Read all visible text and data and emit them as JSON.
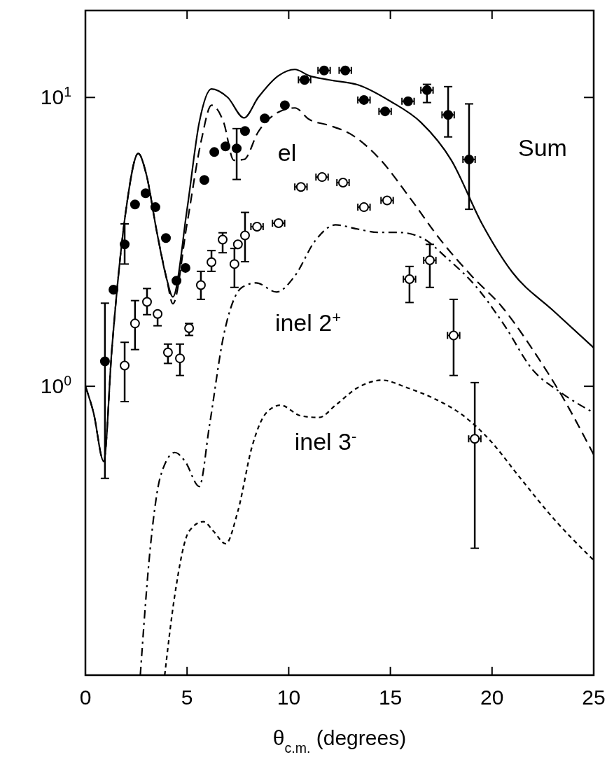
{
  "chart_data": {
    "type": "line",
    "xlabel": "θ$_{c.m.}$ (degrees)",
    "log": "y",
    "grid": false,
    "xlim": [
      0,
      25
    ],
    "xticks": [
      0,
      5,
      10,
      15,
      20,
      25
    ],
    "ylim": [
      0.1,
      20
    ],
    "yticks": [
      {
        "value": 1,
        "label": "10$^{0}$"
      },
      {
        "value": 10,
        "label": "10$^{1}$"
      }
    ],
    "annotations": [
      "Sum",
      "el",
      "inel 2$^{+}$",
      "inel 3$^{-}$"
    ],
    "series": [
      {
        "color": "#000000",
        "line_style": "solid",
        "x": [
          0,
          0.4,
          0.9,
          1.3,
          2,
          2.6,
          3,
          3.5,
          4,
          4.3,
          5,
          5.6,
          6.2,
          7,
          7.8,
          8.5,
          9.5,
          10.3,
          11,
          12,
          13.5,
          15,
          16.5,
          18,
          19.5,
          21,
          23,
          25
        ],
        "values": [
          1.0,
          0.81,
          0.55,
          1.34,
          4.1,
          6.4,
          5.4,
          3.46,
          2.35,
          2.04,
          4.1,
          8.2,
          10.7,
          10,
          8.5,
          10,
          11.9,
          12.5,
          11.9,
          11.5,
          11,
          9.7,
          8.2,
          6.06,
          3.66,
          2.48,
          1.83,
          1.36
        ]
      },
      {
        "color": "#000000",
        "line_style": "dashed",
        "x": [
          0,
          0.4,
          0.9,
          1.3,
          2,
          2.6,
          3,
          3.5,
          4,
          4.3,
          5,
          5.7,
          6.2,
          6.8,
          7.3,
          7.8,
          8.5,
          9.5,
          10.3,
          11,
          12,
          13,
          14.5,
          16,
          17.5,
          19,
          20.5,
          22,
          23.5,
          25
        ],
        "values": [
          1.0,
          0.81,
          0.55,
          1.34,
          4.1,
          6.4,
          5.4,
          3.46,
          2.35,
          1.93,
          3.66,
          7.1,
          9.4,
          8.2,
          6.06,
          6.1,
          7.6,
          8.9,
          9.2,
          8.4,
          8.0,
          7.5,
          6.1,
          4.45,
          3.19,
          2.41,
          1.88,
          1.34,
          0.91,
          0.58
        ]
      },
      {
        "color": "#000000",
        "line_style": "dashdot",
        "x": [
          2.7,
          3.2,
          3.7,
          4.4,
          4.9,
          5.6,
          6.1,
          6.8,
          7.7,
          8.4,
          9.4,
          10.3,
          11.3,
          12.3,
          13.4,
          14.4,
          15.4,
          16.5,
          17.8,
          19.2,
          20.6,
          22,
          23.3,
          25
        ],
        "values": [
          0.1,
          0.28,
          0.49,
          0.59,
          0.55,
          0.45,
          0.73,
          1.5,
          2.2,
          2.28,
          2.12,
          2.41,
          3.19,
          3.62,
          3.5,
          3.41,
          3.41,
          3.28,
          2.77,
          2.22,
          1.63,
          1.14,
          0.96,
          0.81
        ]
      },
      {
        "color": "#000000",
        "line_style": "dotted",
        "x": [
          3.9,
          4.4,
          5.1,
          5.8,
          6.3,
          6.9,
          7.5,
          8.2,
          8.9,
          9.6,
          10.6,
          11.5,
          12.3,
          13.4,
          14.6,
          15.8,
          17.1,
          18.5,
          19.9,
          21.3,
          23,
          25
        ],
        "values": [
          0.1,
          0.19,
          0.315,
          0.34,
          0.315,
          0.285,
          0.37,
          0.62,
          0.81,
          0.86,
          0.79,
          0.78,
          0.86,
          0.99,
          1.05,
          0.99,
          0.91,
          0.8,
          0.65,
          0.49,
          0.35,
          0.25
        ]
      },
      {
        "type": "scatter",
        "color": "#000000",
        "marker": "circle",
        "x": [
          0.96,
          1.38,
          1.93,
          2.44,
          2.96,
          3.44,
          3.96,
          4.48,
          4.92,
          5.85,
          6.34,
          6.89,
          7.44,
          7.85,
          8.82,
          9.81,
          10.78,
          11.74,
          12.78,
          13.7,
          14.74,
          15.87,
          16.8,
          17.84,
          18.87
        ],
        "values": [
          1.22,
          2.16,
          3.1,
          4.26,
          4.66,
          4.17,
          3.26,
          2.32,
          2.57,
          5.18,
          6.47,
          6.77,
          6.66,
          7.65,
          8.46,
          9.4,
          11.5,
          12.4,
          12.4,
          9.8,
          8.95,
          9.7,
          10.6,
          8.7,
          6.1
        ],
        "errors": [
          [
            0.48,
            1.94
          ],
          null,
          [
            2.65,
            3.65
          ],
          null,
          null,
          null,
          null,
          null,
          null,
          null,
          null,
          null,
          [
            5.2,
            7.8
          ],
          null,
          null,
          null,
          null,
          null,
          null,
          null,
          null,
          null,
          [
            9.6,
            11.1
          ],
          [
            7.3,
            10.9
          ],
          [
            4.1,
            9.5
          ]
        ],
        "xerrors": [
          null,
          null,
          null,
          null,
          null,
          null,
          null,
          null,
          null,
          null,
          null,
          null,
          null,
          null,
          null,
          null,
          0.3,
          0.3,
          0.3,
          0.3,
          0.3,
          0.3,
          0.3,
          0.3,
          0.3
        ]
      },
      {
        "type": "scatter",
        "color": "#ffffff",
        "marker": "circle",
        "x": [
          1.93,
          2.44,
          3.03,
          3.55,
          4.06,
          4.65,
          5.1,
          5.68,
          6.2,
          6.75,
          7.33,
          7.5,
          7.85,
          8.44,
          9.5,
          10.6,
          11.64,
          12.67,
          13.7,
          14.84,
          15.94,
          16.94,
          18.11,
          19.15
        ],
        "values": [
          1.18,
          1.65,
          1.96,
          1.78,
          1.31,
          1.25,
          1.59,
          2.24,
          2.69,
          3.22,
          2.65,
          3.1,
          3.33,
          3.57,
          3.67,
          4.9,
          5.3,
          5.07,
          4.17,
          4.4,
          2.35,
          2.73,
          1.5,
          0.658
        ],
        "errors": [
          [
            0.885,
            1.42
          ],
          [
            1.34,
            1.98
          ],
          [
            1.77,
            2.18
          ],
          [
            1.62,
            1.8
          ],
          [
            1.2,
            1.4
          ],
          [
            1.09,
            1.4
          ],
          [
            1.5,
            1.65
          ],
          [
            2.0,
            2.5
          ],
          [
            2.5,
            2.95
          ],
          [
            2.9,
            3.4
          ],
          [
            2.2,
            3.0
          ],
          null,
          [
            2.7,
            4.0
          ],
          null,
          null,
          null,
          null,
          null,
          null,
          null,
          [
            1.95,
            2.6
          ],
          [
            2.2,
            3.1
          ],
          [
            1.09,
            2.0
          ],
          [
            0.275,
            1.03
          ]
        ],
        "xerrors": [
          null,
          null,
          null,
          null,
          null,
          null,
          null,
          null,
          null,
          null,
          null,
          null,
          null,
          0.3,
          0.3,
          0.3,
          0.3,
          0.3,
          0.3,
          0.3,
          0.3,
          0.3,
          0.3,
          0.3
        ]
      }
    ]
  }
}
